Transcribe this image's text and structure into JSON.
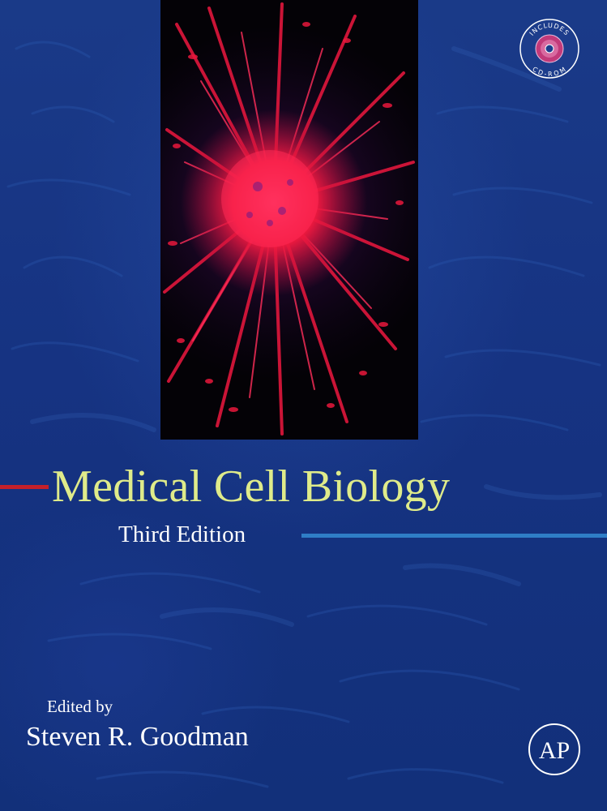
{
  "cover": {
    "title": "Medical Cell Biology",
    "edition": "Third Edition",
    "edited_by": "Edited by",
    "author": "Steven R. Goodman",
    "badge_text_top": "INCLUDES",
    "badge_text_bottom": "CD-ROM",
    "publisher_logo_text": "AP"
  },
  "colors": {
    "background": "#16337e",
    "title": "#dfeb8a",
    "text": "#ffffff",
    "red_rule": "#c4202a",
    "blue_rule": "#2f7ec6",
    "cell_stain": "#e8183c"
  },
  "icons": {
    "cover_image": "cell-micrograph-image",
    "badge": "cd-rom-badge-icon",
    "publisher": "publisher-logo-icon"
  }
}
